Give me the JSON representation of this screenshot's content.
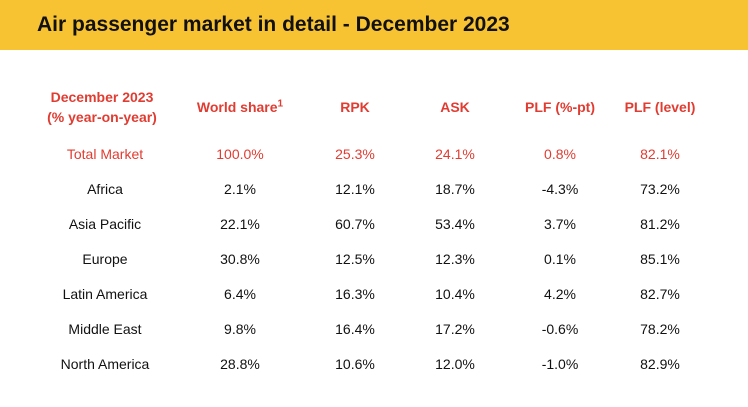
{
  "title": "Air passenger market in detail - December 2023",
  "table": {
    "headers": {
      "region_line1": "December 2023",
      "region_line2": "(% year-on-year)",
      "world_share": "World share",
      "world_share_sup": "1",
      "rpk": "RPK",
      "ask": "ASK",
      "plf_pt": "PLF (%-pt)",
      "plf_level": "PLF (level)"
    },
    "rows": [
      {
        "region": "Total Market",
        "world_share": "100.0%",
        "rpk": "25.3%",
        "ask": "24.1%",
        "plf_pt": "0.8%",
        "plf_level": "82.1%"
      },
      {
        "region": "Africa",
        "world_share": "2.1%",
        "rpk": "12.1%",
        "ask": "18.7%",
        "plf_pt": "-4.3%",
        "plf_level": "73.2%"
      },
      {
        "region": "Asia Pacific",
        "world_share": "22.1%",
        "rpk": "60.7%",
        "ask": "53.4%",
        "plf_pt": "3.7%",
        "plf_level": "81.2%"
      },
      {
        "region": "Europe",
        "world_share": "30.8%",
        "rpk": "12.5%",
        "ask": "12.3%",
        "plf_pt": "0.1%",
        "plf_level": "85.1%"
      },
      {
        "region": "Latin America",
        "world_share": "6.4%",
        "rpk": "16.3%",
        "ask": "10.4%",
        "plf_pt": "4.2%",
        "plf_level": "82.7%"
      },
      {
        "region": "Middle East",
        "world_share": "9.8%",
        "rpk": "16.4%",
        "ask": "17.2%",
        "plf_pt": "-0.6%",
        "plf_level": "78.2%"
      },
      {
        "region": "North America",
        "world_share": "28.8%",
        "rpk": "10.6%",
        "ask": "12.0%",
        "plf_pt": "-1.0%",
        "plf_level": "82.9%"
      }
    ]
  },
  "colors": {
    "title_bar": "#f8c333",
    "accent_red": "#e03c31",
    "text": "#111111"
  }
}
